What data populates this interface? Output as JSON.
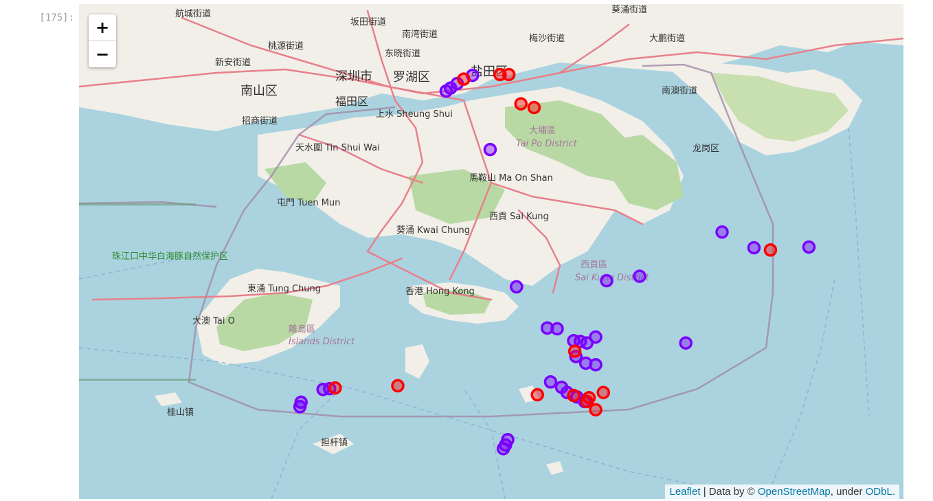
{
  "cell": {
    "prompt": "[175]:"
  },
  "zoom": {
    "in_label": "+",
    "out_label": "−"
  },
  "attribution": {
    "leaflet": "Leaflet",
    "sep": " | Data by © ",
    "osm": "OpenStreetMap",
    "under": ", under ",
    "odbl": "ODbL."
  },
  "colors": {
    "water": "#aad3df",
    "land": "#f2efe9",
    "green": "#b9d9a4",
    "boundary": "#a08aa6",
    "purple_marker": "#7a00ff",
    "red_marker": "#ff0000",
    "road": "#e8808a"
  },
  "labels": [
    {
      "text": "航城街道"
    },
    {
      "text": "坂田街道"
    },
    {
      "text": "葵涌街道"
    },
    {
      "text": "南湾街道"
    },
    {
      "text": "梅沙街道"
    },
    {
      "text": "大鹏街道"
    },
    {
      "text": "桃源街道"
    },
    {
      "text": "东晓街道"
    },
    {
      "text": "新安街道"
    },
    {
      "text": "深圳市"
    },
    {
      "text": "罗湖区"
    },
    {
      "text": "盐田区"
    },
    {
      "text": "南山区"
    },
    {
      "text": "福田区"
    },
    {
      "text": "南澳街道"
    },
    {
      "text": "上水 Sheung Shui"
    },
    {
      "text": "招商街道"
    },
    {
      "text": "大埔區"
    },
    {
      "text": "Tai Po District"
    },
    {
      "text": "龙岗区"
    },
    {
      "text": "天水圍 Tin Shui Wai"
    },
    {
      "text": "馬鞍山 Ma On Shan"
    },
    {
      "text": "屯門 Tuen Mun"
    },
    {
      "text": "西貢 Sai Kung"
    },
    {
      "text": "葵涌 Kwai Chung"
    },
    {
      "text": "珠江口中华白海豚自然保护区"
    },
    {
      "text": "西貢區"
    },
    {
      "text": "Sai Kung District"
    },
    {
      "text": "東涌 Tung Chung"
    },
    {
      "text": "香港 Hong Kong"
    },
    {
      "text": "大澳 Tai O"
    },
    {
      "text": "離島區"
    },
    {
      "text": "Islands District"
    },
    {
      "text": "桂山镇"
    },
    {
      "text": "担杆镇"
    }
  ],
  "markers": {
    "purple": [
      {
        "lat": 22.534,
        "lon": 114.064
      },
      {
        "lat": 22.528,
        "lon": 114.058
      },
      {
        "lat": 22.524,
        "lon": 114.054
      },
      {
        "lat": 22.545,
        "lon": 114.078
      },
      {
        "lat": 22.446,
        "lon": 114.094
      },
      {
        "lat": 22.336,
        "lon": 114.305
      },
      {
        "lat": 22.315,
        "lon": 114.334
      },
      {
        "lat": 22.316,
        "lon": 114.384
      },
      {
        "lat": 22.277,
        "lon": 114.23
      },
      {
        "lat": 22.271,
        "lon": 114.2
      },
      {
        "lat": 22.263,
        "lon": 114.118
      },
      {
        "lat": 22.208,
        "lon": 114.146
      },
      {
        "lat": 22.207,
        "lon": 114.155
      },
      {
        "lat": 22.196,
        "lon": 114.19
      },
      {
        "lat": 22.191,
        "lon": 114.17
      },
      {
        "lat": 22.19,
        "lon": 114.176
      },
      {
        "lat": 22.188,
        "lon": 114.182
      },
      {
        "lat": 22.17,
        "lon": 114.172
      },
      {
        "lat": 22.161,
        "lon": 114.181
      },
      {
        "lat": 22.159,
        "lon": 114.19
      },
      {
        "lat": 22.136,
        "lon": 114.149
      },
      {
        "lat": 22.129,
        "lon": 114.159
      },
      {
        "lat": 22.122,
        "lon": 114.164
      },
      {
        "lat": 22.116,
        "lon": 114.173
      },
      {
        "lat": 22.11,
        "lon": 114.18
      },
      {
        "lat": 22.188,
        "lon": 114.272
      },
      {
        "lat": 22.127,
        "lon": 113.948
      },
      {
        "lat": 22.126,
        "lon": 113.942
      },
      {
        "lat": 22.109,
        "lon": 113.922
      },
      {
        "lat": 22.103,
        "lon": 113.921
      },
      {
        "lat": 22.059,
        "lon": 114.11
      },
      {
        "lat": 22.052,
        "lon": 114.108
      },
      {
        "lat": 22.047,
        "lon": 114.106
      }
    ],
    "red": [
      {
        "lat": 22.54,
        "lon": 114.07
      },
      {
        "lat": 22.546,
        "lon": 114.103
      },
      {
        "lat": 22.546,
        "lon": 114.111
      },
      {
        "lat": 22.507,
        "lon": 114.122
      },
      {
        "lat": 22.502,
        "lon": 114.134
      },
      {
        "lat": 22.312,
        "lon": 114.349
      },
      {
        "lat": 22.128,
        "lon": 113.953
      },
      {
        "lat": 22.131,
        "lon": 114.01
      },
      {
        "lat": 22.119,
        "lon": 114.137
      },
      {
        "lat": 22.118,
        "lon": 114.17
      },
      {
        "lat": 22.115,
        "lon": 114.184
      },
      {
        "lat": 22.122,
        "lon": 114.197
      },
      {
        "lat": 22.11,
        "lon": 114.182
      },
      {
        "lat": 22.099,
        "lon": 114.19
      },
      {
        "lat": 22.177,
        "lon": 114.171
      }
    ]
  }
}
